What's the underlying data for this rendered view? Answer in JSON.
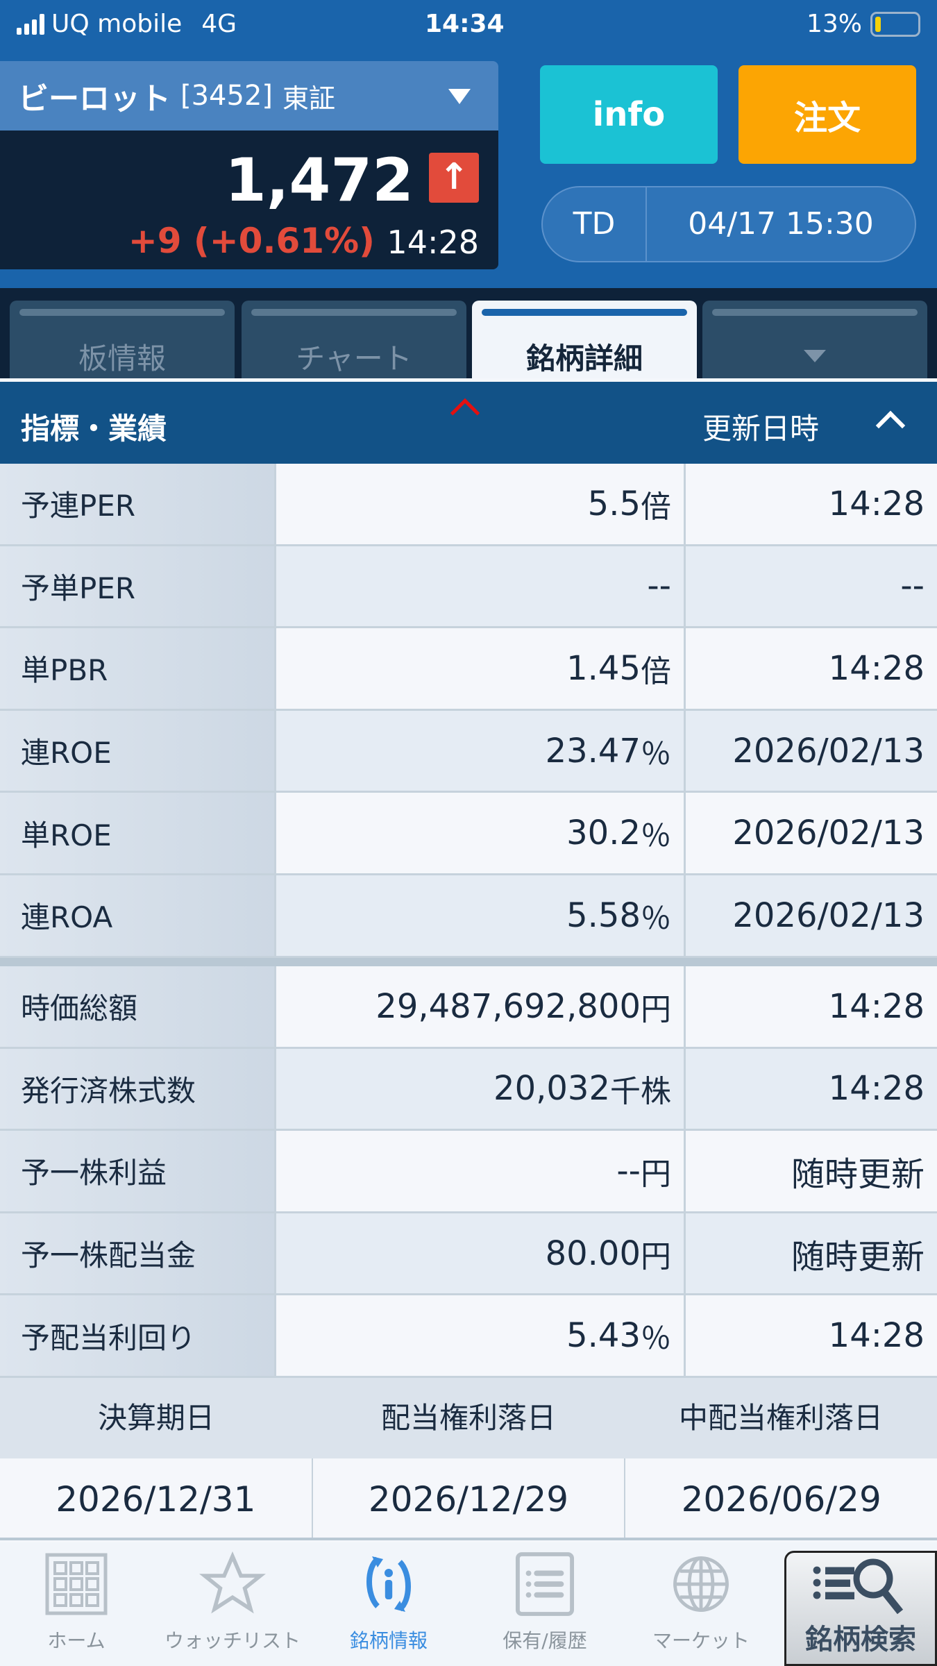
{
  "status": {
    "carrier": "UQ mobile",
    "network": "4G",
    "time": "14:34",
    "battery": "13%"
  },
  "stock": {
    "name": "ビーロット",
    "code": "[3452]",
    "exchange": "東証",
    "price": "1,472",
    "change": "+9 (+0.61%)",
    "time": "14:28",
    "direction": "up",
    "up_color": "#e24b3b"
  },
  "buttons": {
    "info": "info",
    "order": "注文"
  },
  "td": {
    "label": "TD",
    "datetime": "04/17 15:30"
  },
  "tabs": [
    {
      "label": "板情報"
    },
    {
      "label": "チャート"
    },
    {
      "label": "銘柄詳細",
      "active": true
    },
    {
      "label": ""
    }
  ],
  "section": {
    "title": "指標・業績",
    "updated_label": "更新日時"
  },
  "metrics": [
    {
      "label": "予連PER",
      "value": "5.5",
      "unit": "倍",
      "time": "14:28"
    },
    {
      "label": "予単PER",
      "value": "--",
      "unit": "",
      "time": "--"
    },
    {
      "label": "単PBR",
      "value": "1.45",
      "unit": "倍",
      "time": "14:28"
    },
    {
      "label": "連ROE",
      "value": "23.47",
      "unit": "％",
      "time": "2026/02/13"
    },
    {
      "label": "単ROE",
      "value": "30.2",
      "unit": "％",
      "time": "2026/02/13"
    },
    {
      "label": "連ROA",
      "value": "5.58",
      "unit": "％",
      "time": "2026/02/13"
    }
  ],
  "metrics2": [
    {
      "label": "時価総額",
      "value": "29,487,692,800",
      "unit": "円",
      "time": "14:28"
    },
    {
      "label": "発行済株式数",
      "value": "20,032",
      "unit": "千株",
      "time": "14:28"
    },
    {
      "label": "予一株利益",
      "value": "--",
      "unit": "円",
      "time": "随時更新"
    },
    {
      "label": "予一株配当金",
      "value": "80.00",
      "unit": "円",
      "time": "随時更新"
    },
    {
      "label": "予配当利回り",
      "value": "5.43",
      "unit": "％",
      "time": "14:28"
    }
  ],
  "dates": {
    "headers": [
      "決算期日",
      "配当権利落日",
      "中配当権利落日"
    ],
    "values": [
      "2026/12/31",
      "2026/12/29",
      "2026/06/29"
    ]
  },
  "nav": [
    {
      "label": "ホーム"
    },
    {
      "label": "ウォッチリスト"
    },
    {
      "label": "銘柄情報",
      "active": true
    },
    {
      "label": "保有/履歴"
    },
    {
      "label": "マーケット"
    },
    {
      "label": "銘柄検索"
    }
  ]
}
